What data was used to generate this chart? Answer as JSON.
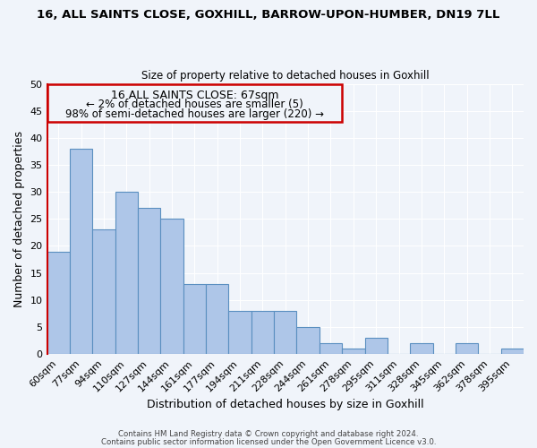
{
  "title": "16, ALL SAINTS CLOSE, GOXHILL, BARROW-UPON-HUMBER, DN19 7LL",
  "subtitle": "Size of property relative to detached houses in Goxhill",
  "xlabel": "Distribution of detached houses by size in Goxhill",
  "ylabel": "Number of detached properties",
  "bar_labels": [
    "60sqm",
    "77sqm",
    "94sqm",
    "110sqm",
    "127sqm",
    "144sqm",
    "161sqm",
    "177sqm",
    "194sqm",
    "211sqm",
    "228sqm",
    "244sqm",
    "261sqm",
    "278sqm",
    "295sqm",
    "311sqm",
    "328sqm",
    "345sqm",
    "362sqm",
    "378sqm",
    "395sqm"
  ],
  "bar_heights": [
    19,
    38,
    23,
    30,
    27,
    25,
    13,
    13,
    8,
    8,
    8,
    5,
    2,
    1,
    3,
    0,
    2,
    0,
    2,
    0,
    1
  ],
  "bar_color": "#aec6e8",
  "bar_edge_color": "#5a8fc0",
  "highlight_color": "#cc0000",
  "annotation_line1": "16 ALL SAINTS CLOSE: 67sqm",
  "annotation_line2": "← 2% of detached houses are smaller (5)",
  "annotation_line3": "98% of semi-detached houses are larger (220) →",
  "annotation_box_color": "#cc0000",
  "ylim": [
    0,
    50
  ],
  "yticks": [
    0,
    5,
    10,
    15,
    20,
    25,
    30,
    35,
    40,
    45,
    50
  ],
  "footer1": "Contains HM Land Registry data © Crown copyright and database right 2024.",
  "footer2": "Contains public sector information licensed under the Open Government Licence v3.0.",
  "bg_color": "#f0f4fa",
  "grid_color": "#ffffff",
  "fig_width": 6.0,
  "fig_height": 5.0
}
